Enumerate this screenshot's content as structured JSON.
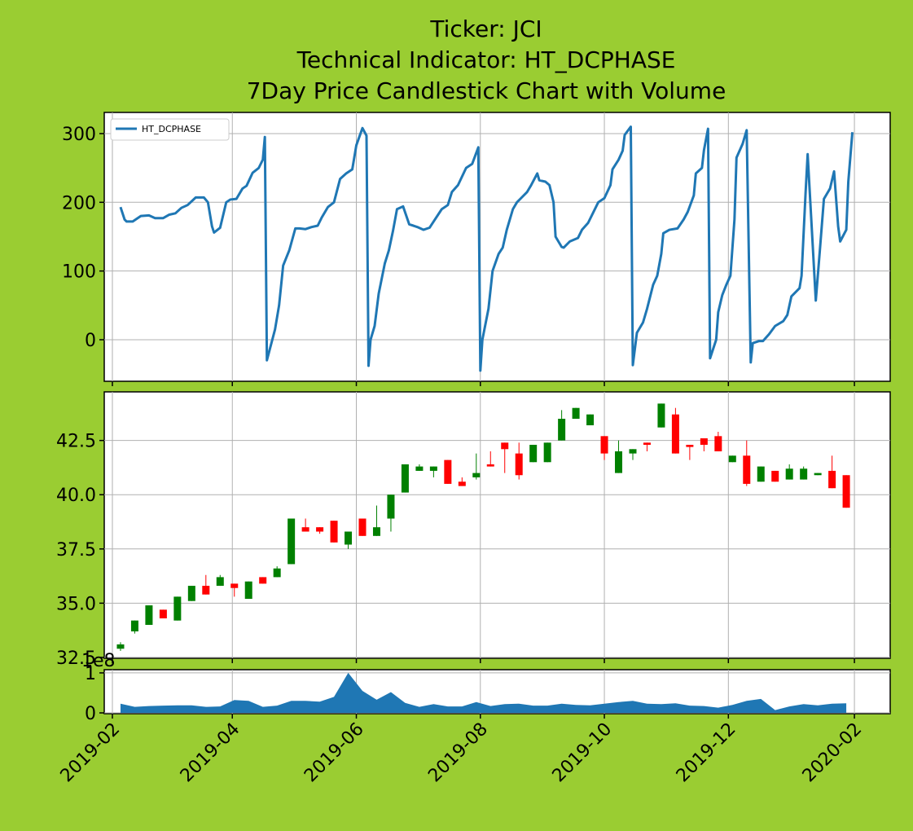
{
  "chart_data": [
    {
      "type": "line",
      "title": [
        "Ticker: JCI",
        "Technical Indicator: HT_DCPHASE",
        "7Day Price Candlestick Chart with Volume"
      ],
      "legend": "upper left",
      "grid": true,
      "xlim": [
        27,
        413.6
      ],
      "xticks": [
        31,
        90,
        151,
        212,
        273,
        334,
        396
      ],
      "ylim": [
        -60.5,
        330.8
      ],
      "yticks": [
        0,
        100,
        200,
        300
      ],
      "series": [
        {
          "name": "HT_DCPHASE",
          "color": "#1f77b4",
          "x": [
            35,
            37,
            38,
            41,
            45,
            49,
            52,
            56,
            59,
            62,
            65,
            68,
            72,
            76,
            78,
            80,
            81,
            84,
            87,
            89,
            92,
            95,
            97,
            100,
            103,
            105,
            106,
            107,
            111,
            113,
            115,
            118,
            121,
            123,
            126,
            129,
            132,
            134,
            137,
            140,
            143,
            146,
            149,
            151,
            154,
            156,
            157,
            158,
            160,
            162,
            165,
            167,
            169,
            171,
            174,
            177,
            181,
            184,
            187,
            189,
            193,
            196,
            198,
            201,
            205,
            208,
            211,
            212,
            213,
            216,
            218,
            221,
            223,
            225,
            228,
            230,
            232,
            235,
            237,
            240,
            241,
            244,
            246,
            248,
            249,
            252,
            253,
            256,
            260,
            262,
            265,
            268,
            270,
            273,
            276,
            277,
            280,
            282,
            283,
            286,
            287,
            289,
            292,
            294,
            297,
            299,
            301,
            302,
            305,
            309,
            312,
            314,
            317,
            318,
            321,
            322,
            324,
            325,
            328,
            329,
            331,
            333,
            335,
            337,
            338,
            341,
            343,
            345,
            346,
            349,
            351,
            354,
            357,
            361,
            363,
            365,
            369,
            370,
            372,
            373,
            377,
            379,
            381,
            384,
            386,
            388,
            389,
            392,
            393,
            395
          ],
          "values": [
            193,
            175,
            172,
            172,
            180,
            181,
            177,
            177,
            182,
            184,
            192,
            196,
            207,
            207,
            200,
            165,
            156,
            163,
            200,
            204,
            205,
            220,
            224,
            243,
            250,
            262,
            295,
            -30,
            15,
            50,
            108,
            130,
            162,
            162,
            161,
            164,
            166,
            178,
            193,
            200,
            234,
            242,
            248,
            283,
            308,
            297,
            -38,
            0,
            20,
            67,
            111,
            130,
            158,
            190,
            194,
            168,
            164,
            160,
            163,
            172,
            190,
            196,
            215,
            225,
            250,
            256,
            280,
            -45,
            0,
            45,
            100,
            125,
            134,
            160,
            190,
            200,
            206,
            215,
            225,
            242,
            232,
            230,
            225,
            200,
            150,
            135,
            134,
            143,
            148,
            160,
            170,
            188,
            200,
            206,
            225,
            248,
            262,
            275,
            298,
            310,
            -37,
            10,
            25,
            45,
            80,
            93,
            125,
            155,
            160,
            162,
            175,
            186,
            210,
            242,
            250,
            276,
            307,
            -27,
            0,
            40,
            65,
            80,
            93,
            175,
            265,
            285,
            305,
            -33,
            -5,
            -2,
            -2,
            8,
            20,
            27,
            36,
            63,
            75,
            93,
            215,
            270,
            57,
            130,
            205,
            220,
            245,
            165,
            143,
            160,
            230,
            302
          ]
        }
      ]
    },
    {
      "type": "candlestick",
      "grid": true,
      "up_color": "#008000",
      "down_color": "#ff0000",
      "xlim": [
        27,
        413.6
      ],
      "xticks": [
        31,
        90,
        151,
        212,
        273,
        334,
        396
      ],
      "ylim": [
        32.46,
        44.74
      ],
      "yticks": [
        32.5,
        {
          "value": 35,
          "label": "35.0"
        },
        37.5,
        {
          "value": 40,
          "label": "40.0"
        },
        42.5
      ],
      "x": [
        35,
        42,
        49,
        56,
        63,
        70,
        77,
        84,
        91,
        98,
        105,
        112,
        119,
        126,
        133,
        140,
        147,
        154,
        161,
        168,
        175,
        182,
        189,
        196,
        203,
        210,
        217,
        224,
        231,
        238,
        245,
        252,
        259,
        266,
        273,
        280,
        287,
        294,
        301,
        308,
        315,
        322,
        329,
        336,
        343,
        350,
        357,
        364,
        371,
        378,
        385,
        392
      ],
      "open": [
        32.9,
        33.7,
        34.0,
        34.7,
        34.2,
        35.1,
        35.8,
        35.8,
        35.9,
        35.2,
        36.2,
        36.2,
        36.8,
        38.5,
        38.5,
        38.8,
        37.7,
        38.9,
        38.1,
        38.9,
        40.1,
        41.1,
        41.1,
        41.6,
        40.6,
        40.8,
        41.4,
        42.4,
        41.9,
        41.5,
        41.5,
        42.5,
        43.5,
        43.2,
        42.7,
        41.0,
        41.9,
        42.4,
        43.1,
        43.7,
        42.3,
        42.6,
        42.7,
        41.5,
        41.8,
        40.6,
        41.1,
        40.7,
        40.7,
        40.9,
        41.1,
        40.9
      ],
      "high": [
        33.2,
        34.2,
        34.9,
        34.7,
        35.3,
        35.8,
        36.3,
        36.3,
        35.9,
        36.0,
        36.2,
        36.7,
        38.9,
        38.9,
        38.5,
        38.8,
        38.3,
        38.9,
        39.5,
        40.0,
        41.4,
        41.4,
        41.3,
        41.6,
        40.8,
        41.9,
        42.0,
        42.4,
        42.4,
        42.3,
        42.4,
        43.9,
        44.0,
        43.7,
        42.7,
        42.5,
        42.1,
        42.4,
        44.2,
        44.0,
        42.3,
        42.6,
        42.9,
        41.8,
        42.5,
        41.3,
        41.1,
        41.4,
        41.3,
        41.0,
        41.8,
        40.9
      ],
      "low": [
        32.8,
        33.6,
        34.0,
        34.3,
        34.2,
        35.1,
        35.4,
        35.8,
        35.3,
        35.2,
        35.9,
        36.2,
        36.8,
        38.3,
        38.2,
        37.8,
        37.5,
        38.1,
        38.1,
        38.3,
        40.1,
        41.1,
        40.8,
        40.5,
        40.4,
        40.7,
        41.3,
        41.0,
        40.7,
        41.5,
        41.5,
        42.5,
        43.5,
        43.2,
        41.6,
        41.0,
        41.6,
        42.0,
        43.1,
        41.9,
        41.6,
        42.0,
        42.0,
        41.5,
        40.4,
        40.6,
        40.6,
        40.7,
        40.7,
        40.9,
        40.3,
        39.4
      ],
      "close": [
        33.1,
        34.2,
        34.9,
        34.3,
        35.3,
        35.8,
        35.4,
        36.2,
        35.7,
        36.0,
        35.9,
        36.6,
        38.9,
        38.3,
        38.3,
        37.8,
        38.3,
        38.1,
        38.5,
        40.0,
        41.4,
        41.3,
        41.3,
        40.5,
        40.4,
        41.0,
        41.3,
        42.1,
        40.9,
        42.3,
        42.4,
        43.5,
        44.0,
        43.7,
        41.9,
        42.0,
        42.1,
        42.3,
        44.2,
        41.9,
        42.2,
        42.3,
        42.0,
        41.8,
        40.5,
        41.3,
        40.6,
        41.2,
        41.2,
        41.0,
        40.3,
        39.4
      ]
    },
    {
      "type": "area",
      "grid": true,
      "offset_label": "1e8",
      "color": "#1f77b4",
      "xlim": [
        27,
        413.6
      ],
      "xticks": [
        {
          "value": 31,
          "label": "2019-02"
        },
        {
          "value": 90,
          "label": "2019-04"
        },
        {
          "value": 151,
          "label": "2019-06"
        },
        {
          "value": 212,
          "label": "2019-08"
        },
        {
          "value": 273,
          "label": "2019-10"
        },
        {
          "value": 334,
          "label": "2019-12"
        },
        {
          "value": 396,
          "label": "2020-02"
        }
      ],
      "ylim": [
        -0.02,
        1.08
      ],
      "yticks": [
        0,
        1
      ],
      "x": [
        35,
        42,
        49,
        56,
        63,
        70,
        77,
        84,
        91,
        98,
        105,
        112,
        119,
        126,
        133,
        140,
        147,
        154,
        161,
        168,
        175,
        182,
        189,
        196,
        203,
        210,
        217,
        224,
        231,
        238,
        245,
        252,
        259,
        266,
        273,
        280,
        287,
        294,
        301,
        308,
        315,
        322,
        329,
        336,
        343,
        350,
        357,
        364,
        371,
        378,
        385,
        392
      ],
      "values": [
        0.23,
        0.15,
        0.17,
        0.18,
        0.19,
        0.19,
        0.15,
        0.16,
        0.32,
        0.3,
        0.15,
        0.18,
        0.3,
        0.3,
        0.28,
        0.4,
        1.0,
        0.55,
        0.33,
        0.52,
        0.25,
        0.15,
        0.22,
        0.16,
        0.16,
        0.27,
        0.17,
        0.22,
        0.23,
        0.18,
        0.18,
        0.23,
        0.2,
        0.19,
        0.23,
        0.27,
        0.3,
        0.23,
        0.22,
        0.24,
        0.18,
        0.17,
        0.13,
        0.2,
        0.3,
        0.35,
        0.07,
        0.16,
        0.22,
        0.19,
        0.23,
        0.24
      ]
    }
  ]
}
